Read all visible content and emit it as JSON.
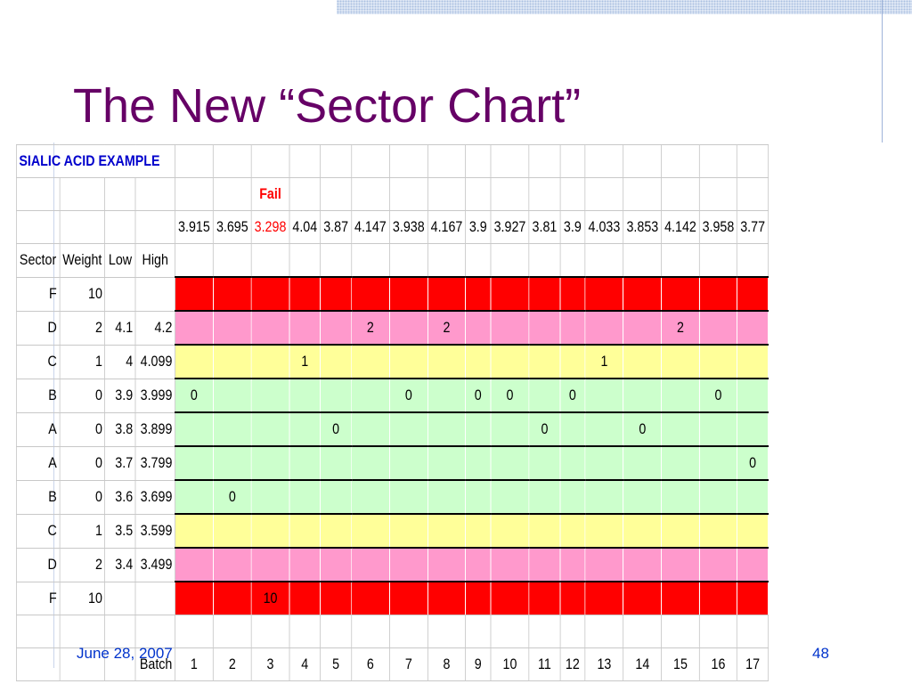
{
  "slide": {
    "title": "The New “Sector Chart”",
    "footer_date": "June 28, 2007",
    "page_number": "48"
  },
  "table": {
    "example_label": "SIALIC ACID EXAMPLE",
    "fail_label": "Fail",
    "fail_batch": 3,
    "values": [
      "3.915",
      "3.695",
      "3.298",
      "4.04",
      "3.87",
      "4.147",
      "3.938",
      "4.167",
      "3.9",
      "3.927",
      "3.81",
      "3.9",
      "4.033",
      "3.853",
      "4.142",
      "3.958",
      "3.77"
    ],
    "headers": {
      "sector": "Sector",
      "weight": "Weight",
      "low": "Low",
      "high": "High",
      "batch": "Batch"
    },
    "batches": [
      "1",
      "2",
      "3",
      "4",
      "5",
      "6",
      "7",
      "8",
      "9",
      "10",
      "11",
      "12",
      "13",
      "14",
      "15",
      "16",
      "17"
    ],
    "rows": [
      {
        "sector": "F",
        "weight": "10",
        "low": "",
        "high": "",
        "band": "F",
        "marks": {}
      },
      {
        "sector": "D",
        "weight": "2",
        "low": "4.1",
        "high": "4.2",
        "band": "D",
        "marks": {
          "6": "2",
          "8": "2",
          "15": "2"
        }
      },
      {
        "sector": "C",
        "weight": "1",
        "low": "4",
        "high": "4.099",
        "band": "C",
        "marks": {
          "4": "1",
          "13": "1"
        }
      },
      {
        "sector": "B",
        "weight": "0",
        "low": "3.9",
        "high": "3.999",
        "band": "B",
        "marks": {
          "1": "0",
          "7": "0",
          "9": "0",
          "10": "0",
          "12": "0",
          "16": "0"
        }
      },
      {
        "sector": "A",
        "weight": "0",
        "low": "3.8",
        "high": "3.899",
        "band": "A",
        "marks": {
          "5": "0",
          "11": "0",
          "14": "0"
        }
      },
      {
        "sector": "A",
        "weight": "0",
        "low": "3.7",
        "high": "3.799",
        "band": "A",
        "marks": {
          "17": "0"
        }
      },
      {
        "sector": "B",
        "weight": "0",
        "low": "3.6",
        "high": "3.699",
        "band": "B",
        "marks": {
          "2": "0"
        }
      },
      {
        "sector": "C",
        "weight": "1",
        "low": "3.5",
        "high": "3.599",
        "band": "C",
        "marks": {}
      },
      {
        "sector": "D",
        "weight": "2",
        "low": "3.4",
        "high": "3.499",
        "band": "D",
        "marks": {}
      },
      {
        "sector": "F",
        "weight": "10",
        "low": "",
        "high": "",
        "band": "F",
        "marks": {
          "3": "10"
        }
      }
    ]
  },
  "colors": {
    "title": "#660066",
    "F": "#ff0000",
    "D": "#ff99cc",
    "C": "#ffff99",
    "A": "#ccffcc",
    "B": "#ccffcc",
    "example": "#0000cc",
    "footer": "#0033cc"
  }
}
